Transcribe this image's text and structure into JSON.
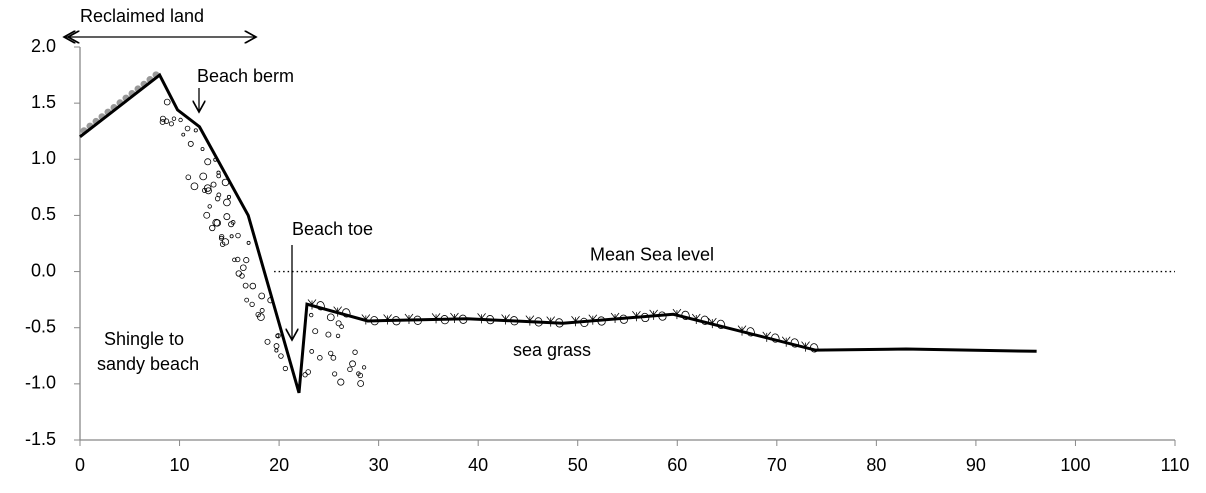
{
  "chart_data": {
    "type": "line",
    "x": [
      0,
      8,
      9.8,
      12,
      16.9,
      22,
      22.8,
      28.9,
      38.9,
      48.5,
      59.6,
      73.9,
      83,
      96.1
    ],
    "series": [
      {
        "color": "#000000",
        "values": [
          1.2,
          1.75,
          1.44,
          1.29,
          0.5,
          -1.08,
          -0.29,
          -0.44,
          -0.42,
          -0.46,
          -0.38,
          -0.7,
          -0.69,
          -0.71
        ]
      }
    ],
    "xlim": [
      0,
      110
    ],
    "xticks": [
      0,
      10,
      20,
      30,
      40,
      50,
      60,
      70,
      80,
      90,
      100,
      110
    ],
    "ylim": [
      -1.5,
      2.0
    ],
    "yticks": [
      {
        "value": 2.0,
        "label": "2.0"
      },
      1.5,
      {
        "value": 1.0,
        "label": "1.0"
      },
      0.5,
      {
        "value": 0.0,
        "label": "0.0"
      },
      -0.5,
      {
        "value": -1.0,
        "label": "-1.0"
      },
      -1.5
    ],
    "grid": false,
    "reference_line": {
      "y": 0,
      "x_start": 19.5,
      "label": "Mean Sea level"
    },
    "annotations": {
      "reclaimed": "Reclaimed land",
      "berm": "Beach berm",
      "toe": "Beach toe",
      "shingle": [
        "Shingle to",
        "sandy beach"
      ],
      "grass": "sea grass"
    }
  }
}
